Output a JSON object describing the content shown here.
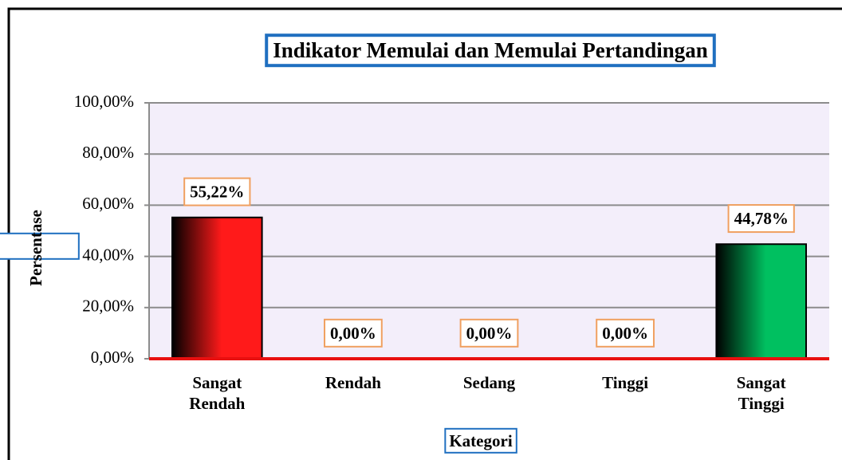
{
  "chart_data": {
    "type": "bar",
    "title": "Indikator Memulai dan Memulai Pertandingan",
    "x_label": "Kategori",
    "y_label": "Persentase",
    "categories": [
      "Sangat Rendah",
      "Rendah",
      "Sedang",
      "Tinggi",
      "Sangat Tinggi"
    ],
    "values": [
      55.22,
      0,
      0,
      0,
      44.78
    ],
    "value_labels": [
      "55,22%",
      "0,00%",
      "0,00%",
      "0,00%",
      "44,78%"
    ],
    "colors": [
      "#ff1a1a",
      "#ff1a1a",
      "#ff1a1a",
      "#ff1a1a",
      "#00c060"
    ],
    "ylim": [
      0,
      100
    ],
    "yticks": [
      {
        "value": 0,
        "label": "0,00%"
      },
      {
        "value": 20,
        "label": "20,00%"
      },
      {
        "value": 40,
        "label": "40,00%"
      },
      {
        "value": 60,
        "label": "60,00%"
      },
      {
        "value": 80,
        "label": "80,00%"
      },
      {
        "value": 100,
        "label": "100,00%"
      }
    ],
    "grid": true
  }
}
